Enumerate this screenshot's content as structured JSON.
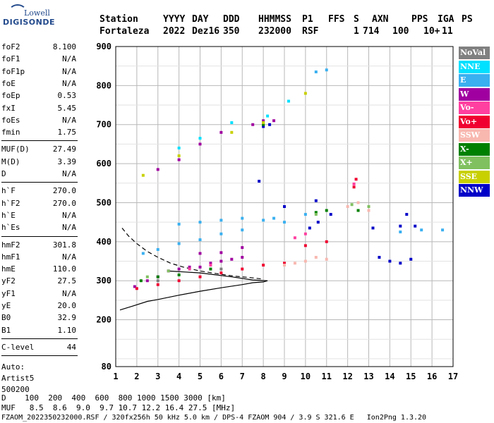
{
  "logo": {
    "line1": "Lowell",
    "line2": "DIGISONDE"
  },
  "header": {
    "labels": [
      "Station",
      "YYYY",
      "DAY",
      "DDD",
      "HHMMSS",
      "P1",
      "FFS",
      "S",
      "AXN",
      "PPS",
      "IGA",
      "PS"
    ],
    "values": [
      "Fortaleza",
      "2022",
      "Dez16",
      "350",
      "232000",
      "RSF",
      "1",
      "714",
      "100",
      "10+",
      "11"
    ]
  },
  "params": {
    "group1": [
      {
        "k": "foF2",
        "v": "8.100"
      },
      {
        "k": "foF1",
        "v": "N/A"
      },
      {
        "k": "foF1p",
        "v": "N/A"
      },
      {
        "k": "foE",
        "v": "N/A"
      },
      {
        "k": "foEp",
        "v": "0.53"
      },
      {
        "k": "fxI",
        "v": "5.45"
      },
      {
        "k": "foEs",
        "v": "N/A"
      },
      {
        "k": "fmin",
        "v": "1.75"
      }
    ],
    "group2": [
      {
        "k": "MUF(D)",
        "v": "27.49"
      },
      {
        "k": "M(D)",
        "v": "3.39"
      },
      {
        "k": "D",
        "v": "N/A"
      }
    ],
    "group3": [
      {
        "k": "h`F",
        "v": "270.0"
      },
      {
        "k": "h`F2",
        "v": "270.0"
      },
      {
        "k": "h`E",
        "v": "N/A"
      },
      {
        "k": "h`Es",
        "v": "N/A"
      }
    ],
    "group4": [
      {
        "k": "hmF2",
        "v": "301.8"
      },
      {
        "k": "hmF1",
        "v": "N/A"
      },
      {
        "k": "hmE",
        "v": "110.0"
      },
      {
        "k": "yF2",
        "v": "27.5"
      },
      {
        "k": "yF1",
        "v": "N/A"
      },
      {
        "k": "yE",
        "v": "20.0"
      },
      {
        "k": "B0",
        "v": "32.9"
      },
      {
        "k": "B1",
        "v": "1.10"
      }
    ],
    "clevel": {
      "k": "C-level",
      "v": "44"
    },
    "auto": [
      "Auto:",
      "Artist5",
      "500200"
    ]
  },
  "legend": [
    {
      "label": "NoVal",
      "color": "#808080"
    },
    {
      "label": "NNE",
      "color": "#00e0ff"
    },
    {
      "label": "E",
      "color": "#3ab0f0"
    },
    {
      "label": "W",
      "color": "#a000a0"
    },
    {
      "label": "Vo-",
      "color": "#ff40a0"
    },
    {
      "label": "Vo+",
      "color": "#f00030"
    },
    {
      "label": "SSW",
      "color": "#f8b8b0"
    },
    {
      "label": "X-",
      "color": "#008000"
    },
    {
      "label": "X+",
      "color": "#80c060"
    },
    {
      "label": "SSE",
      "color": "#c8d000"
    },
    {
      "label": "NNW",
      "color": "#0000c8"
    }
  ],
  "bottom": {
    "line1": "D    100  200  400  600  800 1000 1500 3000 [km]",
    "line2": "MUF   8.5  8.6  9.0  9.7 10.7 12.2 16.4 27.5 [MHz]",
    "line3": "FZAOM_2022350232000.RSF / 320fx256h 50 kHz 5.0 km / DPS-4 FZAOM 904 / 3.9 S 321.6 E   Ion2Png 1.3.20"
  },
  "chart_data": {
    "type": "scatter",
    "title": "",
    "xlabel": "",
    "ylabel": "",
    "xlim": [
      1,
      17
    ],
    "ylim": [
      80,
      900
    ],
    "x_ticks": [
      1,
      2,
      3,
      4,
      5,
      6,
      7,
      8,
      9,
      10,
      11,
      12,
      13,
      14,
      15,
      16,
      17
    ],
    "y_ticks": [
      80,
      200,
      300,
      400,
      500,
      600,
      700,
      800,
      900
    ],
    "grid": true,
    "legend_position": "right",
    "series": [
      {
        "name": "W",
        "points": [
          [
            1.9,
            285
          ],
          [
            2.5,
            300
          ],
          [
            3,
            310
          ],
          [
            3.5,
            325
          ],
          [
            4,
            330
          ],
          [
            4.5,
            335
          ],
          [
            5,
            335
          ],
          [
            5.5,
            345
          ],
          [
            6,
            350
          ],
          [
            6.5,
            355
          ],
          [
            7,
            360
          ],
          [
            5,
            370
          ],
          [
            6,
            372
          ],
          [
            7,
            385
          ],
          [
            3,
            585
          ],
          [
            4,
            610
          ],
          [
            5,
            650
          ],
          [
            6,
            680
          ],
          [
            7.5,
            700
          ],
          [
            8,
            710
          ],
          [
            8.5,
            710
          ]
        ]
      },
      {
        "name": "E",
        "points": [
          [
            2.3,
            370
          ],
          [
            3,
            380
          ],
          [
            4,
            395
          ],
          [
            5,
            405
          ],
          [
            6,
            420
          ],
          [
            7,
            430
          ],
          [
            4,
            445
          ],
          [
            5,
            450
          ],
          [
            6,
            455
          ],
          [
            7,
            460
          ],
          [
            8,
            455
          ],
          [
            8.5,
            460
          ],
          [
            9,
            450
          ],
          [
            10,
            470
          ],
          [
            14.5,
            425
          ],
          [
            15.5,
            430
          ],
          [
            16.5,
            430
          ],
          [
            10.5,
            835
          ],
          [
            11,
            840
          ]
        ]
      },
      {
        "name": "Vo+",
        "points": [
          [
            2,
            280
          ],
          [
            3,
            290
          ],
          [
            4,
            300
          ],
          [
            5,
            310
          ],
          [
            6,
            320
          ],
          [
            7,
            330
          ],
          [
            8,
            340
          ],
          [
            9,
            345
          ],
          [
            10,
            390
          ],
          [
            11,
            400
          ],
          [
            12.4,
            560
          ],
          [
            12.3,
            540
          ]
        ]
      },
      {
        "name": "NNW",
        "points": [
          [
            8,
            695
          ],
          [
            8.3,
            700
          ],
          [
            10.2,
            435
          ],
          [
            10.6,
            450
          ],
          [
            11.2,
            470
          ],
          [
            13.2,
            435
          ],
          [
            13.5,
            360
          ],
          [
            14,
            350
          ],
          [
            14.5,
            345
          ],
          [
            14.5,
            440
          ],
          [
            15,
            355
          ],
          [
            15.2,
            440
          ],
          [
            14.8,
            470
          ],
          [
            7.8,
            555
          ],
          [
            9,
            490
          ],
          [
            10.5,
            505
          ]
        ]
      },
      {
        "name": "SSW",
        "points": [
          [
            9,
            340
          ],
          [
            9.5,
            345
          ],
          [
            10,
            350
          ],
          [
            10.5,
            360
          ],
          [
            11,
            355
          ],
          [
            12,
            490
          ],
          [
            12.5,
            500
          ],
          [
            13,
            480
          ]
        ]
      },
      {
        "name": "X-",
        "points": [
          [
            2.2,
            300
          ],
          [
            3,
            310
          ],
          [
            4,
            315
          ],
          [
            5.5,
            330
          ],
          [
            8,
            700
          ],
          [
            10.5,
            475
          ],
          [
            11,
            480
          ],
          [
            12.5,
            480
          ]
        ]
      },
      {
        "name": "X+",
        "points": [
          [
            2.5,
            310
          ],
          [
            3.5,
            325
          ],
          [
            8,
            705
          ],
          [
            10.5,
            470
          ],
          [
            12.2,
            495
          ],
          [
            13,
            490
          ]
        ]
      },
      {
        "name": "SSE",
        "points": [
          [
            2.3,
            570
          ],
          [
            4,
            620
          ],
          [
            6.5,
            680
          ],
          [
            8,
            705
          ],
          [
            10,
            780
          ]
        ]
      },
      {
        "name": "NNE",
        "points": [
          [
            4,
            640
          ],
          [
            5,
            665
          ],
          [
            6.5,
            705
          ],
          [
            8.2,
            722
          ],
          [
            9.2,
            760
          ]
        ]
      },
      {
        "name": "Vo-",
        "points": [
          [
            4.5,
            330
          ],
          [
            5.5,
            340
          ],
          [
            9.5,
            410
          ],
          [
            10,
            420
          ],
          [
            12.3,
            548
          ]
        ]
      },
      {
        "name": "NoVal",
        "points": [
          [
            3,
            300
          ],
          [
            6,
            330
          ]
        ]
      }
    ],
    "profile_solid": [
      [
        1.2,
        225
      ],
      [
        1.8,
        235
      ],
      [
        2.5,
        247
      ],
      [
        3,
        252
      ],
      [
        4,
        263
      ],
      [
        5,
        273
      ],
      [
        6,
        282
      ],
      [
        7,
        290
      ],
      [
        7.5,
        295
      ],
      [
        8,
        297
      ],
      [
        8.2,
        300
      ],
      [
        7.5,
        302
      ],
      [
        6.5,
        310
      ],
      [
        5,
        320
      ],
      [
        3.5,
        325
      ]
    ],
    "profile_dashed": [
      [
        1.3,
        435
      ],
      [
        1.6,
        415
      ],
      [
        2,
        395
      ],
      [
        2.5,
        375
      ],
      [
        3,
        360
      ],
      [
        3.6,
        345
      ],
      [
        4.2,
        335
      ],
      [
        5,
        325
      ],
      [
        5.8,
        318
      ],
      [
        6.6,
        312
      ],
      [
        7.4,
        308
      ],
      [
        8,
        304
      ]
    ]
  }
}
